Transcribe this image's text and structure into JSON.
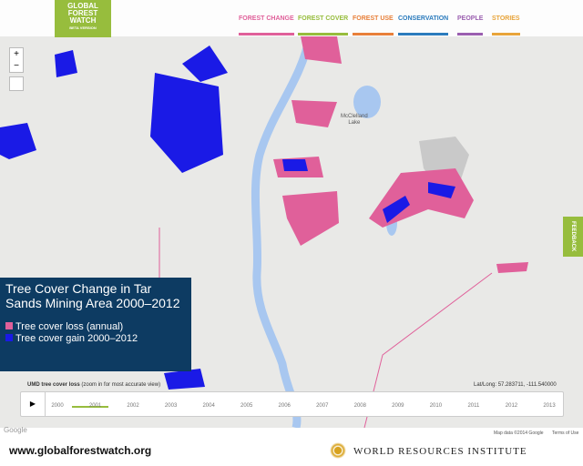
{
  "header": {
    "logo": [
      "GLOBAL",
      "FOREST",
      "WATCH"
    ],
    "logo_sub": "BETA VERSION",
    "nav": [
      "FOREST CHANGE",
      "FOREST COVER",
      "FOREST USE",
      "CONSERVATION",
      "PEOPLE",
      "STORIES"
    ]
  },
  "map": {
    "lake_label": [
      "McClelland",
      "Lake"
    ],
    "zoom_in": "+",
    "zoom_out": "−",
    "feedback": "FEEDBACK",
    "attribution": "Map data ©2014 Google",
    "terms": "Terms of Use",
    "google": "Google"
  },
  "legend": {
    "title": "Tree Cover Change in Tar Sands Mining Area 2000–2012",
    "items": [
      "Tree cover loss (annual)",
      "Tree cover gain 2000–2012"
    ]
  },
  "timeline": {
    "layer": "UMD tree cover loss",
    "layer_note": "(zoom in for most accurate view)",
    "latlong": "Lat/Long: 57.283711, -111.540000",
    "years": [
      "2000",
      "2001",
      "2002",
      "2003",
      "2004",
      "2005",
      "2006",
      "2007",
      "2008",
      "2009",
      "2010",
      "2011",
      "2012",
      "2013"
    ]
  },
  "footer": {
    "url": "www.globalforestwatch.org",
    "org": "WORLD RESOURCES INSTITUTE"
  }
}
